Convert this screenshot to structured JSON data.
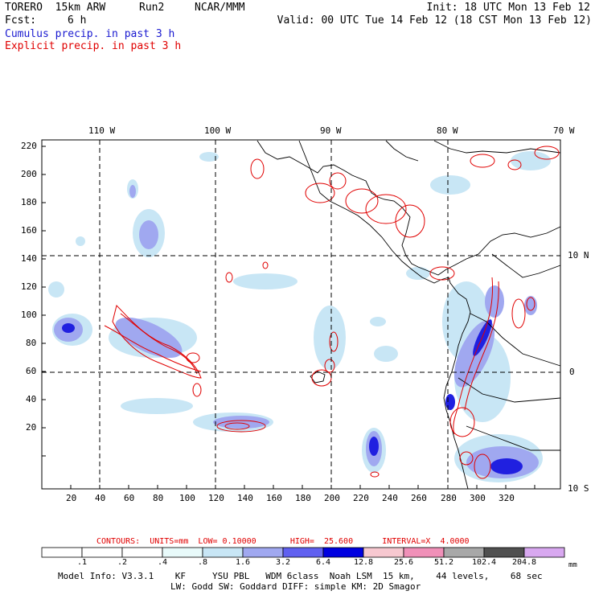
{
  "header": {
    "model": "TORERO  15km ARW",
    "run": "Run2",
    "org": "NCAR/MMM",
    "init": "Init: 18 UTC Mon 13 Feb 12",
    "fcst_label": "Fcst:",
    "fcst_value": "6 h",
    "valid": "Valid: 00 UTC Tue 14 Feb 12 (18 CST Mon 13 Feb 12)",
    "legend_cumulus": "Cumulus precip. in past 3 h",
    "legend_explicit": "Explicit precip. in past 3 h",
    "colors": {
      "cumulus": "#1a1ad0",
      "explicit": "#e00000"
    }
  },
  "map": {
    "lon_labels": [
      "110 W",
      "100 W",
      "90 W",
      "80 W",
      "70 W"
    ],
    "lat_labels": [
      "10 N",
      "0",
      "10 S"
    ],
    "y_ticks": [
      "220",
      "200",
      "180",
      "160",
      "140",
      "120",
      "100",
      "80",
      "60",
      "40",
      "20"
    ],
    "x_ticks": [
      "20",
      "40",
      "60",
      "80",
      "100",
      "120",
      "140",
      "160",
      "180",
      "200",
      "220",
      "240",
      "260",
      "280",
      "300",
      "320"
    ]
  },
  "colorbar": {
    "contours": "CONTOURS:  UNITS=mm  LOW= 0.10000       HIGH=  25.600      INTERVAL=X  4.0000",
    "unit": "mm",
    "labels": [
      ".1",
      ".2",
      ".4",
      ".8",
      "1.6",
      "3.2",
      "6.4",
      "12.8",
      "25.6",
      "51.2",
      "102.4",
      "204.8"
    ],
    "colors": [
      "#ffffff",
      "#ffffff",
      "#ffffff",
      "#e8fafa",
      "#c8e6f5",
      "#a0a8f0",
      "#6060f0",
      "#0000e0",
      "#f7c8d0",
      "#f090b8",
      "#a8a8a8",
      "#505050",
      "#d8a8f0"
    ]
  },
  "footer": {
    "line1": "Model Info: V3.3.1    KF     YSU PBL   WDM 6class  Noah LSM  15 km,    44 levels,    68 sec",
    "line2": "LW: Godd SW: Goddard DIFF: simple KM: 2D Smagor"
  }
}
